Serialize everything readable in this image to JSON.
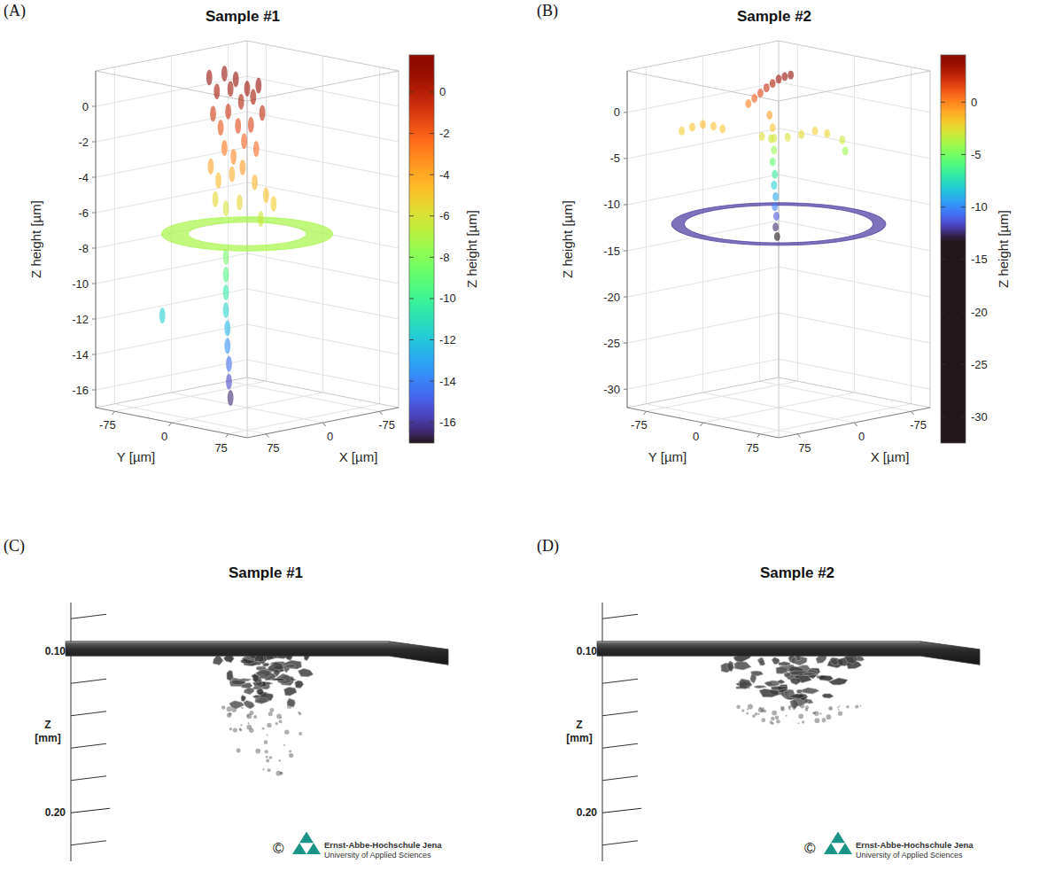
{
  "chart_data": [
    {
      "type": "scatter3d",
      "panel": "(A)",
      "title": "Sample #1",
      "x_label": "X [µm]",
      "y_label": "Y [µm]",
      "z_label": "Z height [µm]",
      "xlim": [
        -100,
        100
      ],
      "xticks": [
        -75,
        0,
        75
      ],
      "ylim": [
        -100,
        100
      ],
      "yticks": [
        -75,
        0,
        75
      ],
      "zlim": [
        -17,
        2
      ],
      "zticks": [
        -16,
        -14,
        -12,
        -10,
        -8,
        -6,
        -4,
        -2,
        0
      ],
      "grid": true,
      "points": {
        "x": [
          0,
          0,
          0,
          0,
          0,
          0,
          0,
          0,
          0,
          0,
          0,
          0,
          0,
          0,
          0,
          0,
          0,
          0,
          0,
          0,
          0,
          0,
          0,
          0,
          0,
          0,
          0,
          0,
          0,
          0,
          14,
          14,
          14,
          14,
          14,
          14,
          14,
          14,
          14,
          62
        ],
        "y": [
          -50,
          -40,
          -30,
          -22,
          -15,
          -8,
          0,
          8,
          15,
          -45,
          -35,
          -25,
          -12,
          -4,
          5,
          12,
          -30,
          -18,
          20,
          -48,
          -38,
          -20,
          -6,
          10,
          25,
          35,
          -42,
          -28,
          -10,
          18,
          -14,
          -14,
          -14,
          -14,
          -12,
          -12,
          -10,
          -10,
          -8,
          -50
        ],
        "z": [
          1.2,
          0.5,
          1.6,
          0.8,
          1.4,
          0.2,
          1.0,
          0.6,
          1.3,
          -0.8,
          -1.5,
          -0.5,
          -1.2,
          -2.0,
          -1.0,
          -2.3,
          -2.6,
          -3.0,
          -0.2,
          -3.8,
          -4.5,
          -4.0,
          -3.5,
          -4.2,
          -4.8,
          -5.2,
          -5.6,
          -6.0,
          -5.5,
          -6.2,
          -8.5,
          -9.5,
          -10.5,
          -11.5,
          -12.5,
          -13.5,
          -14.5,
          -15.5,
          -16.4,
          -11.7
        ]
      },
      "ring": {
        "z": -7.2,
        "inner_radius": 55,
        "outer_radius": 80
      },
      "colorbar": {
        "label": "Z height [µm]",
        "range": [
          -17,
          1.8
        ],
        "ticks": [
          -16,
          -14,
          -12,
          -10,
          -8,
          -6,
          -4,
          -2,
          0
        ],
        "colormap_range": [
          -17,
          1.8
        ]
      }
    },
    {
      "type": "scatter3d",
      "panel": "(B)",
      "title": "Sample #2",
      "x_label": "X [µm]",
      "y_label": "Y [µm]",
      "z_label": "Z height [µm]",
      "xlim": [
        -100,
        100
      ],
      "xticks": [
        -75,
        0,
        75
      ],
      "ylim": [
        -100,
        100
      ],
      "yticks": [
        -75,
        0,
        75
      ],
      "zlim": [
        -32,
        4.5
      ],
      "zticks": [
        -30,
        -25,
        -20,
        -15,
        -10,
        -5,
        0
      ],
      "grid": true,
      "points": {
        "x": [
          0,
          0,
          0,
          0,
          0,
          0,
          0,
          0,
          64,
          57,
          50,
          43,
          37,
          11,
          3,
          -6,
          -15,
          -24,
          -32,
          -42,
          -44,
          0,
          0,
          0,
          0,
          0,
          0,
          0,
          0,
          0,
          0,
          0,
          0
        ],
        "y": [
          -40,
          -32,
          -24,
          -16,
          -8,
          0,
          8,
          16,
          -64,
          -57,
          -50,
          -43,
          -37,
          -11,
          -3,
          6,
          15,
          24,
          32,
          42,
          44,
          -12,
          -8,
          -10,
          -6,
          -8,
          -5,
          -6,
          -4,
          -5,
          -3,
          -4,
          -2
        ],
        "z": [
          0.3,
          1.0,
          1.7,
          2.4,
          3.0,
          3.6,
          4.0,
          4.3,
          -2.0,
          -1.6,
          -1.3,
          -1.5,
          -1.8,
          -2.6,
          -2.8,
          -2.7,
          -2.4,
          -2.0,
          -2.3,
          -3.0,
          -4.2,
          -0.5,
          -1.8,
          -3,
          -4.2,
          -5.5,
          -6.8,
          -8,
          -9.2,
          -10.3,
          -11.3,
          -12.5,
          -13.5
        ]
      },
      "ring": {
        "z": -12.1,
        "inner_radius": 88,
        "outer_radius": 100
      },
      "colorbar": {
        "label": "Z height [µm]",
        "range": [
          -32.5,
          4.5
        ],
        "ticks": [
          -30,
          -25,
          -20,
          -15,
          -10,
          -5,
          0
        ],
        "colormap_range": [
          -13,
          4.5
        ]
      }
    },
    {
      "type": "volume_render",
      "panel": "(C)",
      "title": "Sample #1",
      "y_label": [
        "Z",
        "[mm]"
      ],
      "ylim": [
        0.07,
        0.23
      ],
      "yticks": [
        {
          "value": 0.1,
          "label": "0.10"
        },
        {
          "value": 0.2,
          "label": "0.20"
        }
      ],
      "minor_yticks": [
        0.08,
        0.12,
        0.14,
        0.16,
        0.18,
        0.22
      ],
      "plate_z": [
        0.094,
        0.103
      ],
      "damage": {
        "dense_z": [
          0.103,
          0.134
        ],
        "sparse_z": [
          0.134,
          0.176
        ]
      },
      "credit": [
        "©",
        "Ernst-Abbe-Hochschule Jena",
        "University of Applied Sciences"
      ]
    },
    {
      "type": "volume_render",
      "panel": "(D)",
      "title": "Sample #2",
      "y_label": [
        "Z",
        "[mm]"
      ],
      "ylim": [
        0.07,
        0.23
      ],
      "yticks": [
        {
          "value": 0.1,
          "label": "0.10"
        },
        {
          "value": 0.2,
          "label": "0.20"
        }
      ],
      "minor_yticks": [
        0.08,
        0.12,
        0.14,
        0.16,
        0.18,
        0.22
      ],
      "plate_z": [
        0.094,
        0.103
      ],
      "damage": {
        "dense_z": [
          0.104,
          0.134
        ],
        "sparse_z": [
          0.134,
          0.145
        ]
      },
      "credit": [
        "©",
        "Ernst-Abbe-Hochschule Jena",
        "University of Applied Sciences"
      ]
    }
  ]
}
